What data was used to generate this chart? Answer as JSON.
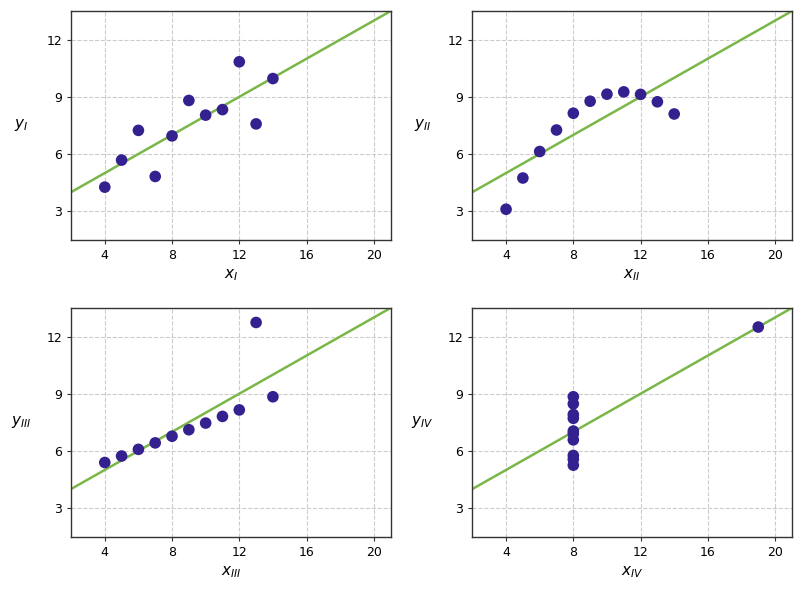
{
  "datasets": {
    "I": {
      "x": [
        10,
        8,
        13,
        9,
        11,
        14,
        6,
        4,
        12,
        7,
        5
      ],
      "y": [
        8.04,
        6.95,
        7.58,
        8.81,
        8.33,
        9.96,
        7.24,
        4.26,
        10.84,
        4.82,
        5.68
      ]
    },
    "II": {
      "x": [
        10,
        8,
        13,
        9,
        11,
        14,
        6,
        4,
        12,
        7,
        5
      ],
      "y": [
        9.14,
        8.14,
        8.74,
        8.77,
        9.26,
        8.1,
        6.13,
        3.1,
        9.13,
        7.26,
        4.74
      ]
    },
    "III": {
      "x": [
        10,
        8,
        13,
        9,
        11,
        14,
        6,
        4,
        12,
        7,
        5
      ],
      "y": [
        7.46,
        6.77,
        12.74,
        7.11,
        7.81,
        8.84,
        6.08,
        5.39,
        8.15,
        6.42,
        5.73
      ]
    },
    "IV": {
      "x": [
        8,
        8,
        8,
        8,
        8,
        8,
        8,
        19,
        8,
        8,
        8
      ],
      "y": [
        6.58,
        5.76,
        7.71,
        8.84,
        8.47,
        7.04,
        5.25,
        12.5,
        5.56,
        7.91,
        6.89
      ]
    }
  },
  "regression": {
    "slope": 0.5001,
    "intercept": 3.0001
  },
  "xlim": [
    2,
    21
  ],
  "ylim": [
    1.5,
    13.5
  ],
  "xticks": [
    4,
    8,
    12,
    16,
    20
  ],
  "yticks": [
    3,
    6,
    9,
    12
  ],
  "dot_color": "#35208f",
  "line_color": "#7ab648",
  "dot_size": 70,
  "line_width": 1.8,
  "plot_bg_color": "#ffffff",
  "fig_bg_color": "#ffffff",
  "grid_color": "#cccccc",
  "grid_linestyle": "--",
  "spine_color": "#333333",
  "tick_color": "#333333",
  "label_fontsize": 11,
  "tick_fontsize": 9,
  "dataset_keys": [
    "I",
    "II",
    "III",
    "IV"
  ],
  "axis_labels": {
    "I": {
      "x": "I",
      "y": "I"
    },
    "II": {
      "x": "II",
      "y": "II"
    },
    "III": {
      "x": "III",
      "y": "III"
    },
    "IV": {
      "x": "IV",
      "y": "IV"
    }
  }
}
